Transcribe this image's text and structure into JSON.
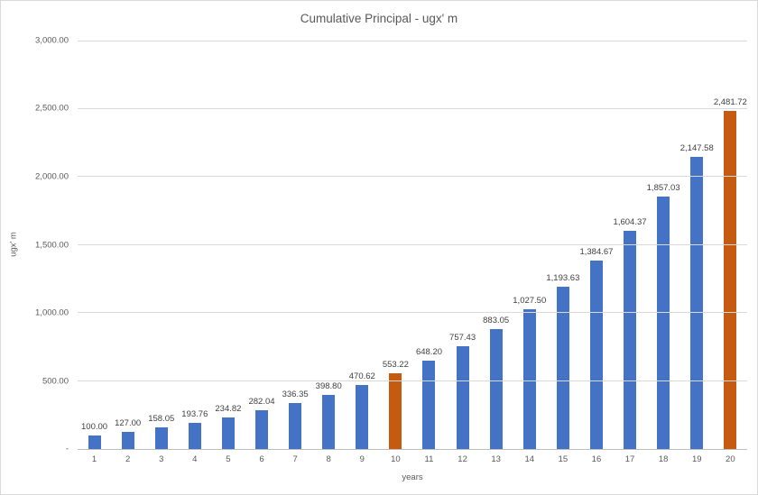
{
  "chart_data": {
    "type": "bar",
    "title": "Cumulative Principal - ugx' m",
    "xlabel": "years",
    "ylabel": "ugx' m",
    "ylim": [
      0,
      3000
    ],
    "ytick_step": 500,
    "ytick_labels_top_down": [
      "3,000.00",
      "2,500.00",
      "2,000.00",
      "1,500.00",
      "1,000.00",
      "500.00",
      "-"
    ],
    "categories": [
      "1",
      "2",
      "3",
      "4",
      "5",
      "6",
      "7",
      "8",
      "9",
      "10",
      "11",
      "12",
      "13",
      "14",
      "15",
      "16",
      "17",
      "18",
      "19",
      "20"
    ],
    "values": [
      100.0,
      127.0,
      158.05,
      193.76,
      234.82,
      282.04,
      336.35,
      398.8,
      470.62,
      553.22,
      648.2,
      757.43,
      883.05,
      1027.5,
      1193.63,
      1384.67,
      1604.37,
      1857.03,
      2147.58,
      2481.72
    ],
    "value_labels": [
      "100.00",
      "127.00",
      "158.05",
      "193.76",
      "234.82",
      "282.04",
      "336.35",
      "398.80",
      "470.62",
      "553.22",
      "648.20",
      "757.43",
      "883.05",
      "1,027.50",
      "1,193.63",
      "1,384.67",
      "1,604.37",
      "1,857.03",
      "2,147.58",
      "2,481.72"
    ],
    "highlight_indices": [
      9,
      19
    ],
    "grid": true,
    "legend": "none",
    "colors": {
      "bar_default": "#4472C4",
      "bar_highlight": "#C55A11",
      "gridline": "#D9D9D9",
      "axis_line": "#BFBFBF",
      "title_text": "#595959",
      "tick_text": "#595959",
      "data_label_text": "#404040"
    }
  }
}
